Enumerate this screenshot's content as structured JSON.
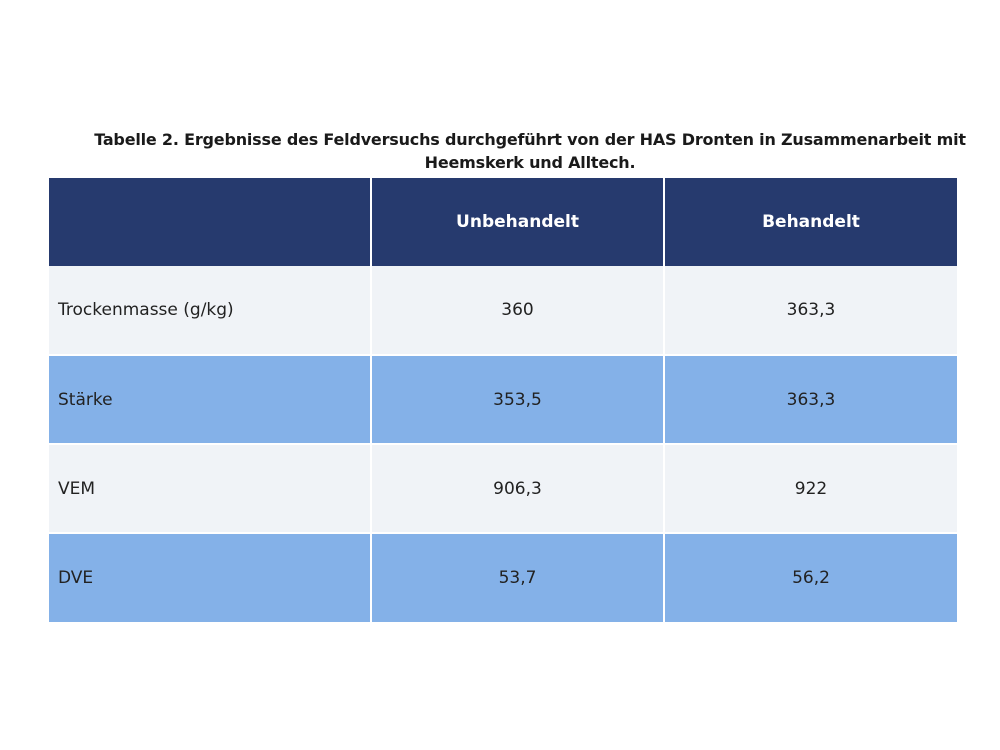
{
  "caption": {
    "line1": "Tabelle 2. Ergebnisse des Feldversuchs durchgeführt von der HAS Dronten in Zusammenarbeit mit",
    "line2": "Heemskerk und Alltech."
  },
  "table": {
    "headers": [
      "",
      "Unbehandelt",
      "Behandelt"
    ],
    "rows": [
      [
        "Trockenmasse (g/kg)",
        "360",
        "363,3"
      ],
      [
        "Stärke",
        "353,5",
        "363,3"
      ],
      [
        "VEM",
        "906,3",
        "922"
      ],
      [
        "DVE",
        "53,7",
        "56,2"
      ]
    ]
  },
  "colors": {
    "header_bg": "#263a6e",
    "row_light": "#f0f3f7",
    "row_blue": "#84b1e8"
  }
}
